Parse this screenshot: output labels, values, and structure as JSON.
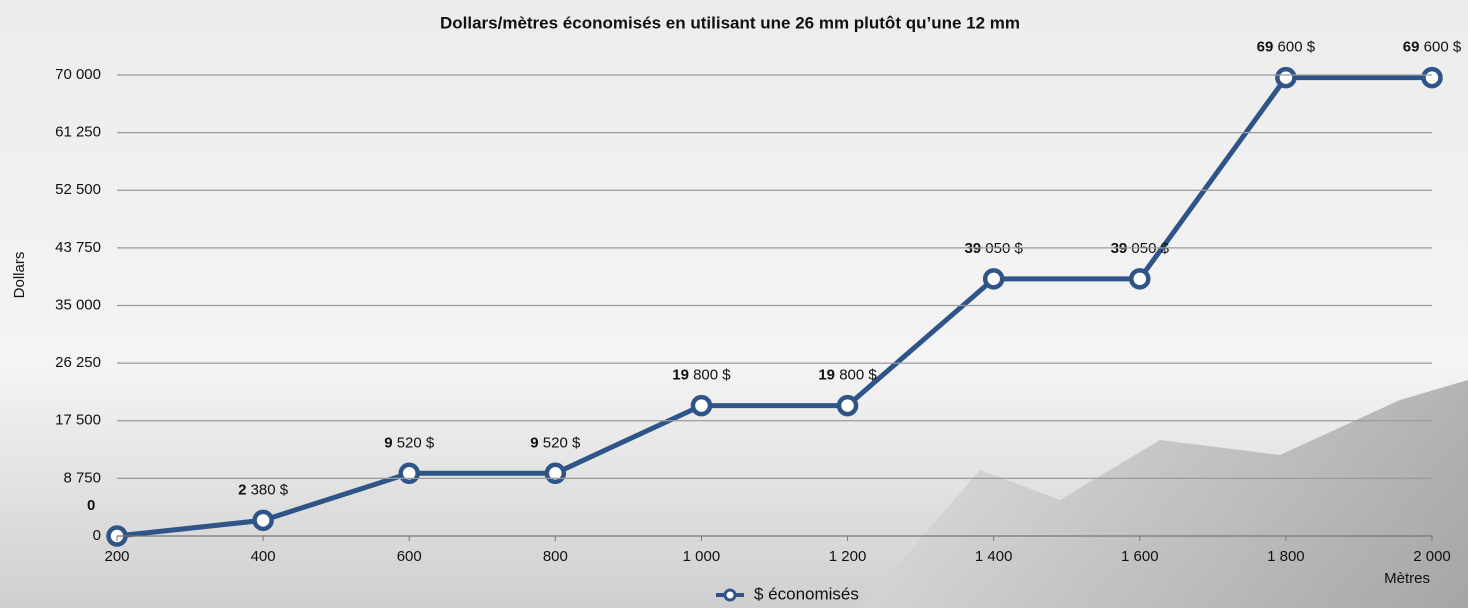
{
  "chart_data": {
    "type": "line",
    "title": "Dollars/mètres économisés en utilisant une 26 mm plutôt qu’une 12 mm",
    "y_label": "Dollars",
    "x_label": "Mètres",
    "x": [
      200,
      400,
      600,
      800,
      1000,
      1200,
      1400,
      1600,
      1800,
      2000
    ],
    "series": [
      {
        "name": "$ économisés",
        "color": "#2f5488",
        "values": [
          0,
          2380,
          9520,
          9520,
          19800,
          19800,
          39050,
          39050,
          69600,
          69600
        ],
        "value_labels": [
          "0",
          "2 380 $",
          "9 520 $",
          "9 520 $",
          "19 800 $",
          "19 800 $",
          "39 050 $",
          "39 050 $",
          "69 600 $",
          "69 600 $"
        ]
      }
    ],
    "xlim": [
      200,
      2000
    ],
    "xticks": [
      200,
      400,
      600,
      800,
      {
        "value": 1000,
        "label": "1 000"
      },
      {
        "value": 1200,
        "label": "1 200"
      },
      {
        "value": 1400,
        "label": "1 400"
      },
      {
        "value": 1600,
        "label": "1 600"
      },
      {
        "value": 1800,
        "label": "1 800"
      },
      {
        "value": 2000,
        "label": "2 000"
      }
    ],
    "ylim": [
      0,
      70000
    ],
    "yticks": [
      0,
      {
        "value": 8750,
        "label": "8 750"
      },
      {
        "value": 17500,
        "label": "17 500"
      },
      {
        "value": 26250,
        "label": "26 250"
      },
      {
        "value": 35000,
        "label": "35 000"
      },
      {
        "value": 43750,
        "label": "43 750"
      },
      {
        "value": 52500,
        "label": "52 500"
      },
      {
        "value": 61250,
        "label": "61 250"
      },
      {
        "value": 70000,
        "label": "70 000"
      }
    ],
    "grid": true,
    "legend": "bottom"
  }
}
